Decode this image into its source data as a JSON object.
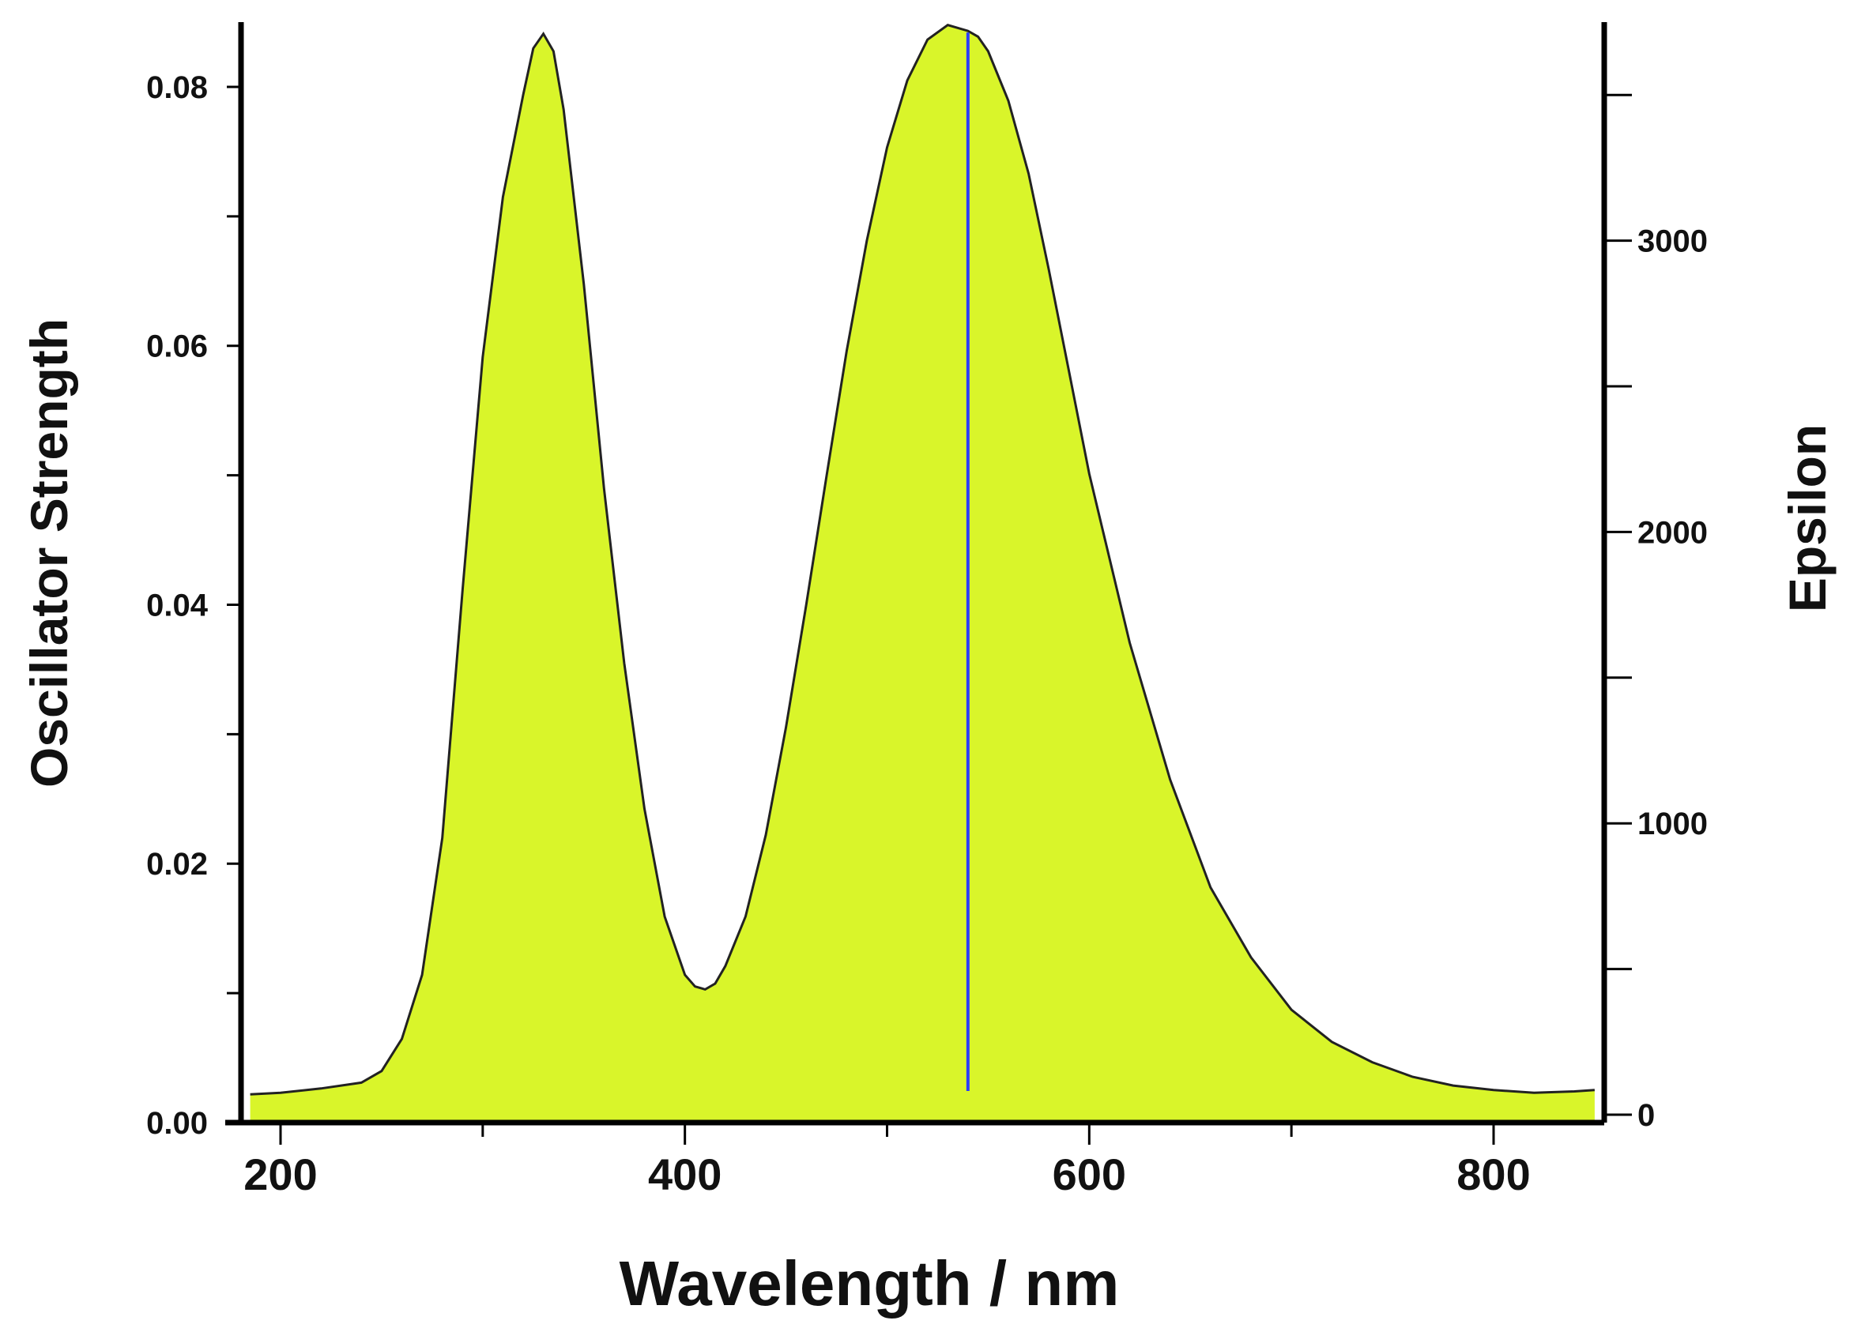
{
  "chart_data": {
    "type": "area",
    "title": "",
    "xlabel": "Wavelength / nm",
    "ylabel": "Oscillator Strength",
    "y2label": "Epsilon",
    "xlim": [
      185,
      850
    ],
    "ylim": [
      0,
      0.085
    ],
    "y2lim": [
      0,
      3750
    ],
    "x_ticks": [
      200,
      400,
      600,
      800
    ],
    "y_ticks": [
      "0.00",
      "0.02",
      "0.04",
      "0.06",
      "0.08"
    ],
    "y2_ticks": [
      "0",
      "1000",
      "2000",
      "3000"
    ],
    "grid": false,
    "legend": "none",
    "fill_color": "#d9f52a",
    "line_color": "#222222",
    "stick_color": "#2b3cff",
    "series": [
      {
        "axis": "right",
        "x": [
          185,
          200,
          220,
          240,
          250,
          260,
          270,
          280,
          290,
          300,
          310,
          320,
          325,
          330,
          335,
          340,
          350,
          360,
          370,
          380,
          390,
          400,
          405,
          410,
          415,
          420,
          430,
          440,
          450,
          460,
          470,
          480,
          490,
          500,
          510,
          520,
          530,
          540,
          545,
          550,
          560,
          570,
          580,
          590,
          600,
          620,
          640,
          660,
          680,
          700,
          720,
          740,
          760,
          780,
          800,
          820,
          840,
          850
        ],
        "y": [
          70,
          75,
          90,
          110,
          150,
          260,
          480,
          950,
          1800,
          2600,
          3150,
          3500,
          3660,
          3710,
          3650,
          3450,
          2850,
          2150,
          1550,
          1050,
          680,
          480,
          440,
          430,
          450,
          510,
          680,
          960,
          1330,
          1750,
          2190,
          2620,
          3000,
          3320,
          3550,
          3690,
          3740,
          3720,
          3700,
          3650,
          3480,
          3230,
          2900,
          2550,
          2200,
          1620,
          1150,
          780,
          540,
          360,
          250,
          180,
          130,
          100,
          85,
          75,
          80,
          85
        ]
      }
    ],
    "sticks": [
      {
        "axis": "left",
        "x": 540,
        "y": 0.0842
      }
    ]
  }
}
